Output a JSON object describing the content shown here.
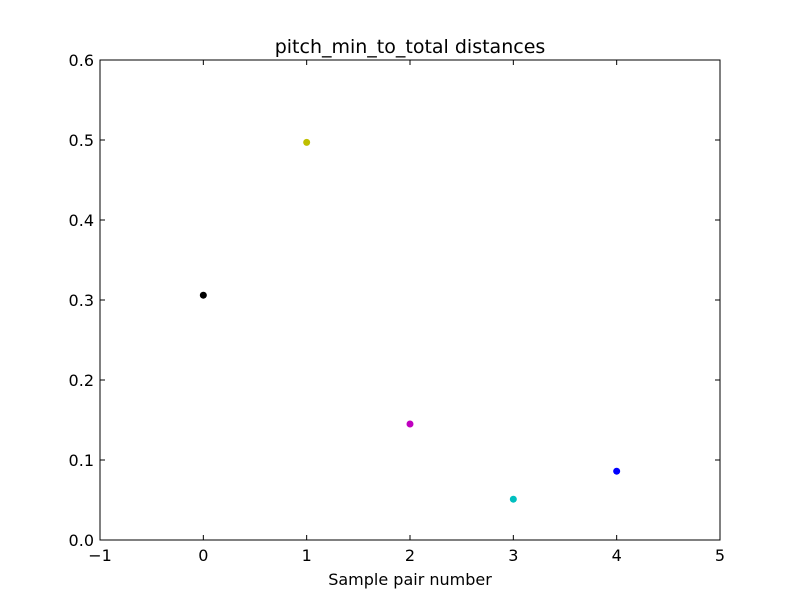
{
  "chart_data": {
    "type": "scatter",
    "title": "pitch_min_to_total distances",
    "xlabel": "Sample pair number",
    "ylabel": "",
    "xlim": [
      -1,
      5
    ],
    "ylim": [
      0,
      0.6
    ],
    "xticks": [
      -1,
      0,
      1,
      2,
      3,
      4,
      5
    ],
    "xtick_labels": [
      "−1",
      "0",
      "1",
      "2",
      "3",
      "4",
      "5"
    ],
    "yticks": [
      0.0,
      0.1,
      0.2,
      0.3,
      0.4,
      0.5,
      0.6
    ],
    "ytick_labels": [
      "0.0",
      "0.1",
      "0.2",
      "0.3",
      "0.4",
      "0.5",
      "0.6"
    ],
    "grid": false,
    "legend": "none",
    "points": [
      {
        "x": 0,
        "y": 0.306,
        "color": "#000000"
      },
      {
        "x": 1,
        "y": 0.497,
        "color": "#bfbf00"
      },
      {
        "x": 2,
        "y": 0.145,
        "color": "#bf00bf"
      },
      {
        "x": 3,
        "y": 0.051,
        "color": "#00bfbf"
      },
      {
        "x": 4,
        "y": 0.086,
        "color": "#0000ff"
      }
    ]
  }
}
